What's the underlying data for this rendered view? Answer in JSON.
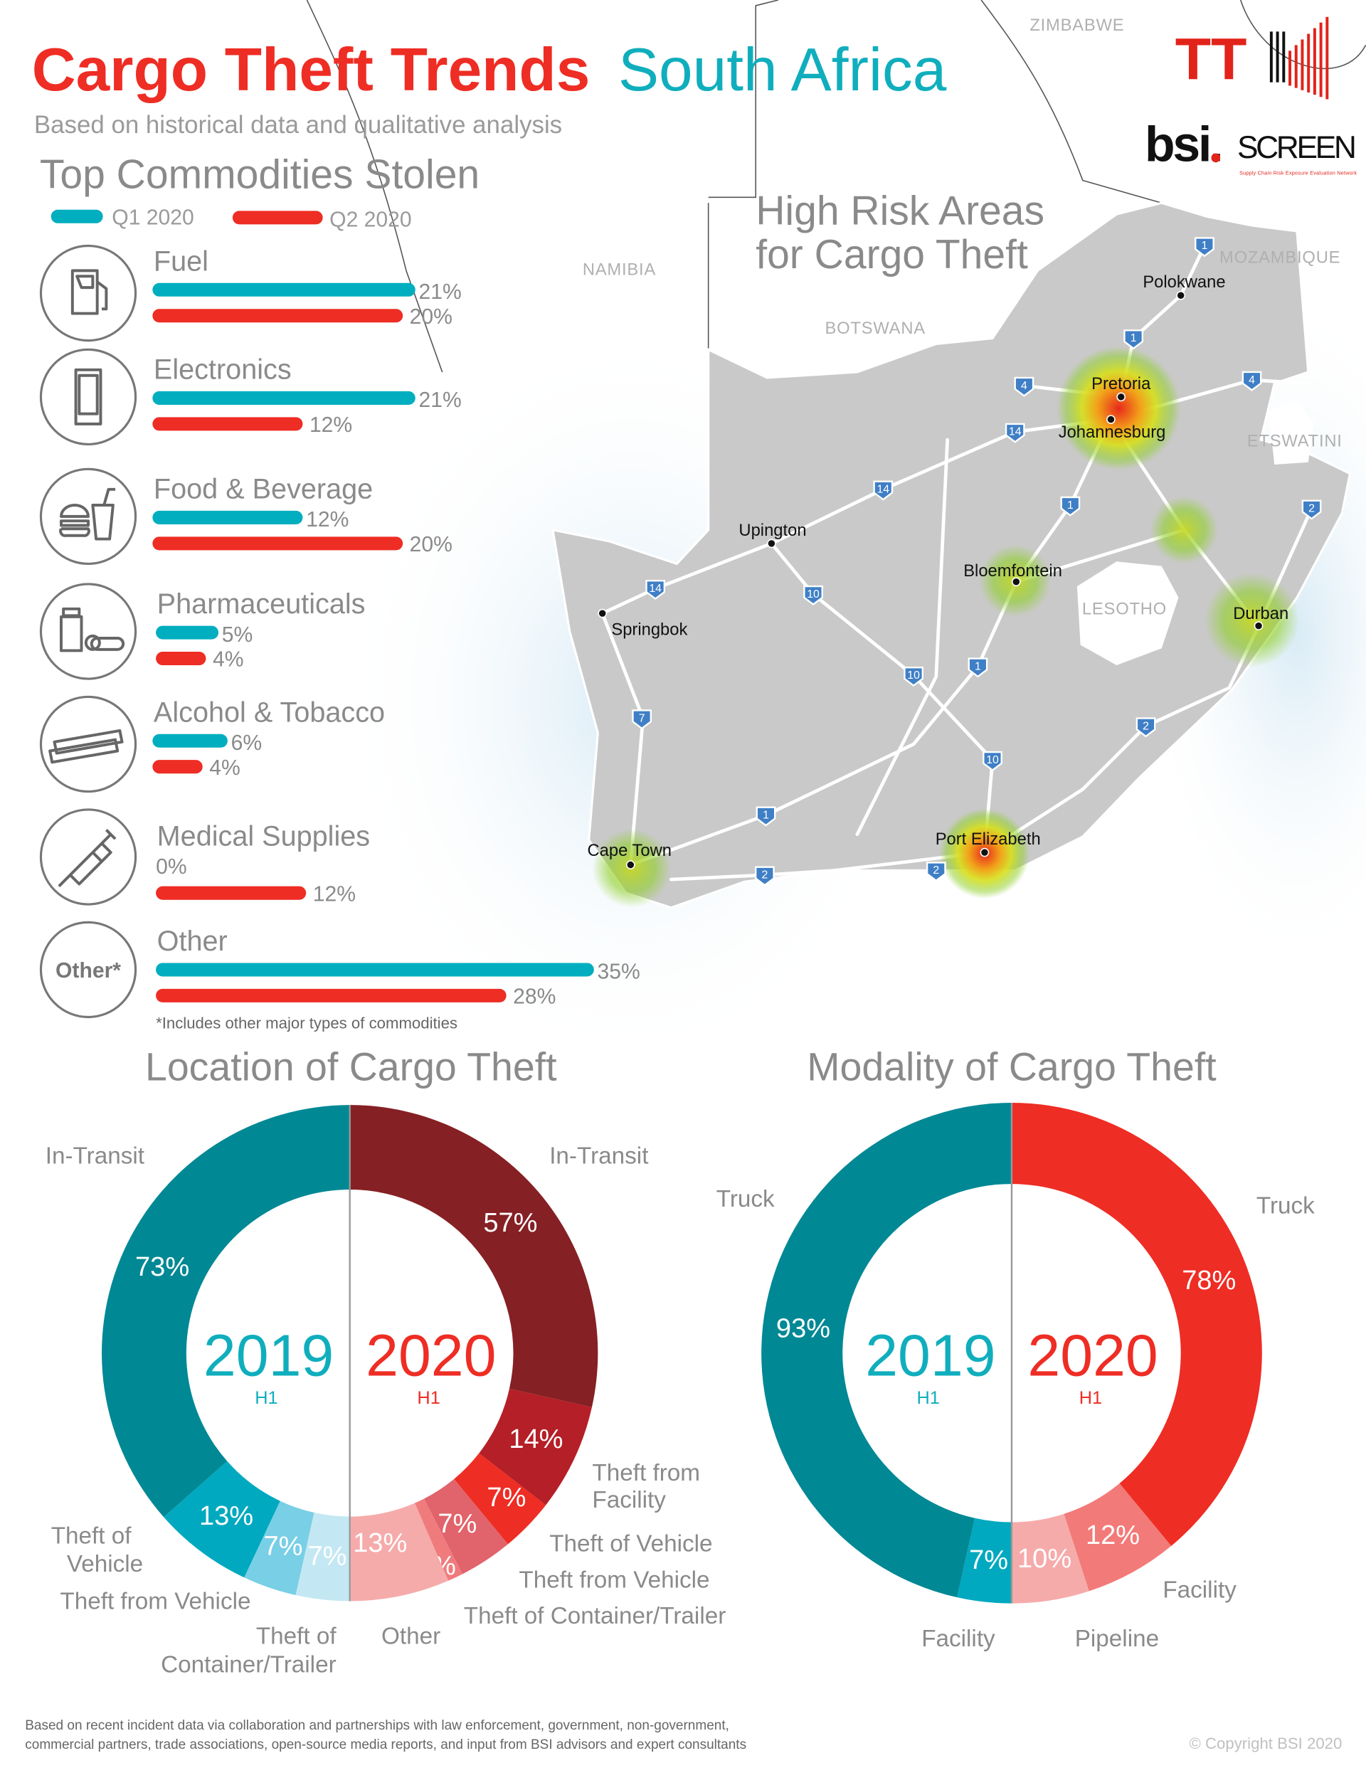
{
  "header": {
    "title_red": "Cargo Theft Trends",
    "title_teal": "South Africa",
    "subtitle": "Based on historical data and qualitative analysis",
    "logo_tt": "TT",
    "logo_bsi": "bsi.",
    "logo_screen": "SCREEN",
    "logo_screen_tagline": "Supply Chain Risk Exposure Evaluation Network"
  },
  "colors": {
    "red": "#ee2d24",
    "teal": "#10aebd",
    "q1": "#00aebf",
    "q2": "#ee2d24"
  },
  "commodities": {
    "title": "Top Commodities Stolen",
    "legend": [
      "Q1 2020",
      "Q2 2020"
    ],
    "footnote": "*Includes other major types of commodities",
    "items": [
      {
        "name": "Fuel",
        "icon": "fuel-pump-icon",
        "q1": 21,
        "q2": 20,
        "q1_label": "21%",
        "q2_label": "20%"
      },
      {
        "name": "Electronics",
        "icon": "smartphone-icon",
        "q1": 21,
        "q2": 12,
        "q1_label": "21%",
        "q2_label": "12%"
      },
      {
        "name": "Food & Beverage",
        "icon": "burger-drink-icon",
        "q1": 12,
        "q2": 20,
        "q1_label": "12%",
        "q2_label": "20%"
      },
      {
        "name": "Pharmaceuticals",
        "icon": "pills-bottle-icon",
        "q1": 5,
        "q2": 4,
        "q1_label": "5%",
        "q2_label": "4%"
      },
      {
        "name": "Alcohol & Tobacco",
        "icon": "cigarette-icon",
        "q1": 6,
        "q2": 4,
        "q1_label": "6%",
        "q2_label": "4%"
      },
      {
        "name": "Medical Supplies",
        "icon": "syringe-icon",
        "q1": 0,
        "q2": 12,
        "q1_label": "0%",
        "q2_label": "12%"
      },
      {
        "name": "Other",
        "icon": "other-text-icon",
        "icon_text": "Other*",
        "q1": 35,
        "q2": 28,
        "q1_label": "35%",
        "q2_label": "28%"
      }
    ]
  },
  "map": {
    "title_line1": "High Risk Areas",
    "title_line2": "for Cargo Theft",
    "countries": [
      "ZIMBABWE",
      "NAMIBIA",
      "BOTSWANA",
      "LESOTHO",
      "ETSWATINI",
      "MOZAMBIQUE"
    ],
    "cities": [
      "Polokwane",
      "Pretoria",
      "Johannesburg",
      "Upington",
      "Springbok",
      "Bloemfontein",
      "Durban",
      "Port Elizabeth",
      "Cape Town"
    ],
    "high_risk": [
      "Pretoria",
      "Johannesburg",
      "Port Elizabeth"
    ],
    "moderate_risk": [
      "Durban",
      "Cape Town",
      "Bloemfontein"
    ],
    "routes": [
      "1",
      "1",
      "4",
      "4",
      "14",
      "14",
      "1",
      "2",
      "14",
      "10",
      "10",
      "1",
      "7",
      "2",
      "10",
      "1",
      "2",
      "2"
    ]
  },
  "chart_data": [
    {
      "type": "pie",
      "title": "Location of Cargo Theft",
      "series": [
        {
          "name": "2019",
          "sub": "H1",
          "color_base": "teal",
          "categories": [
            "In-Transit",
            "Theft of Vehicle",
            "Theft from Vehicle",
            "Theft of Container/Trailer"
          ],
          "values": [
            73,
            13,
            7,
            7
          ],
          "labels": [
            "73%",
            "13%",
            "7%",
            "7%"
          ],
          "colors": [
            "#008894",
            "#00a9bf",
            "#79cfe5",
            "#c4e8f3"
          ]
        },
        {
          "name": "2020",
          "sub": "H1",
          "color_base": "red",
          "categories": [
            "In-Transit",
            "Theft from Facility",
            "Theft of Vehicle",
            "Theft from Vehicle",
            "Theft of Container/Trailer",
            "Other"
          ],
          "values": [
            57,
            14,
            7,
            7,
            2,
            13
          ],
          "labels": [
            "57%",
            "14%",
            "7%",
            "7%",
            "2%",
            "13%"
          ],
          "colors": [
            "#852024",
            "#b51f27",
            "#ee2d24",
            "#e1636b",
            "#f07b7d",
            "#f6abab"
          ]
        }
      ],
      "category_labels": {
        "left": [
          "In-Transit",
          "Theft of",
          "Vehicle",
          "Theft from Vehicle",
          "Theft of",
          "Container/Trailer",
          "Other"
        ],
        "right": [
          "In-Transit",
          "Theft from",
          "Facility",
          "Theft of Vehicle",
          "Theft from Vehicle",
          "Theft of Container/Trailer"
        ]
      }
    },
    {
      "type": "pie",
      "title": "Modality of Cargo Theft",
      "series": [
        {
          "name": "2019",
          "sub": "H1",
          "categories": [
            "Truck",
            "Facility"
          ],
          "values": [
            93,
            7
          ],
          "labels": [
            "93%",
            "7%"
          ],
          "colors": [
            "#008894",
            "#00a9bf"
          ]
        },
        {
          "name": "2020",
          "sub": "H1",
          "categories": [
            "Truck",
            "Facility",
            "Pipeline"
          ],
          "values": [
            78,
            12,
            10
          ],
          "labels": [
            "78%",
            "12%",
            "10%"
          ],
          "colors": [
            "#ee2d24",
            "#f27a78",
            "#f6abab"
          ]
        }
      ],
      "category_labels": {
        "left": [
          "Truck",
          "Facility"
        ],
        "right": [
          "Truck",
          "Facility",
          "Pipeline"
        ]
      }
    }
  ],
  "footer": {
    "line1": "Based on recent incident data via collaboration and partnerships with law enforcement, government, non-government,",
    "line2": "commercial partners, trade associations, open-source media reports, and input from BSI advisors and expert consultants",
    "copyright": "© Copyright BSI 2020"
  }
}
